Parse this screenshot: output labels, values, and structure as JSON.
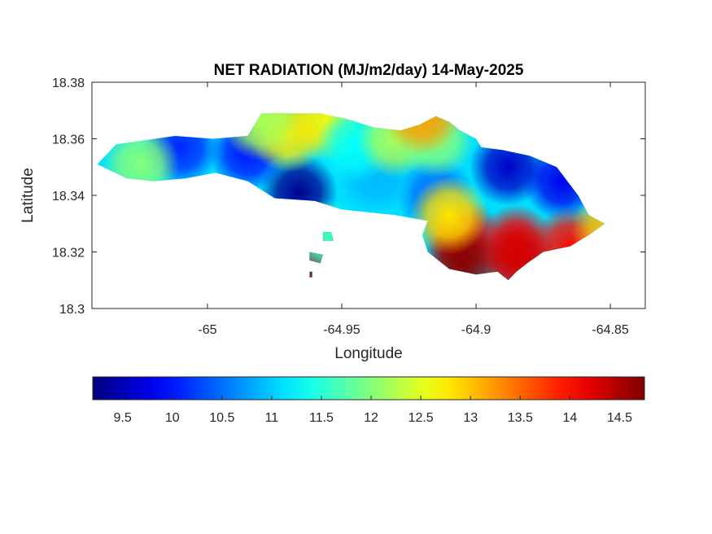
{
  "figure": {
    "title": "NET RADIATION (MJ/m2/day) 14-May-2025"
  },
  "map": {
    "xlabel": "Longitude",
    "ylabel": "Latitude",
    "xlim": [
      -65.043,
      -64.837
    ],
    "ylim": [
      18.3,
      18.38
    ],
    "xticks": [
      {
        "value": -65.0,
        "label": "-65"
      },
      {
        "value": -64.95,
        "label": "-64.95"
      },
      {
        "value": -64.9,
        "label": "-64.9"
      },
      {
        "value": -64.85,
        "label": "-64.85"
      }
    ],
    "yticks": [
      {
        "value": 18.3,
        "label": "18.3"
      },
      {
        "value": 18.32,
        "label": "18.32"
      },
      {
        "value": 18.34,
        "label": "18.34"
      },
      {
        "value": 18.36,
        "label": "18.36"
      },
      {
        "value": 18.38,
        "label": "18.38"
      }
    ],
    "colormap": "jet",
    "clim": [
      9.2,
      14.75
    ],
    "blobs": [
      {
        "x": -64.966,
        "y": 18.341,
        "v": 9.3
      },
      {
        "x": -64.985,
        "y": 18.355,
        "v": 10.0
      },
      {
        "x": -65.01,
        "y": 18.357,
        "v": 10.1
      },
      {
        "x": -64.888,
        "y": 18.35,
        "v": 9.6
      },
      {
        "x": -64.868,
        "y": 18.345,
        "v": 9.8
      },
      {
        "x": -64.915,
        "y": 18.34,
        "v": 10.5
      },
      {
        "x": -65.025,
        "y": 18.351,
        "v": 12.0
      },
      {
        "x": -64.955,
        "y": 18.366,
        "v": 12.7
      },
      {
        "x": -64.97,
        "y": 18.362,
        "v": 12.8
      },
      {
        "x": -64.98,
        "y": 18.366,
        "v": 12.2
      },
      {
        "x": -64.937,
        "y": 18.347,
        "v": 10.9
      },
      {
        "x": -64.945,
        "y": 18.358,
        "v": 11.3
      },
      {
        "x": -64.93,
        "y": 18.36,
        "v": 12.2
      },
      {
        "x": -64.915,
        "y": 18.36,
        "v": 12.0
      },
      {
        "x": -64.905,
        "y": 18.325,
        "v": 14.2
      },
      {
        "x": -64.885,
        "y": 18.323,
        "v": 14.1
      },
      {
        "x": -64.865,
        "y": 18.322,
        "v": 14.0
      },
      {
        "x": -64.905,
        "y": 18.316,
        "v": 14.7
      },
      {
        "x": -64.885,
        "y": 18.317,
        "v": 14.3
      },
      {
        "x": -64.85,
        "y": 18.328,
        "v": 13.0
      },
      {
        "x": -64.91,
        "y": 18.333,
        "v": 12.8
      },
      {
        "x": -64.958,
        "y": 18.318,
        "v": 14.7
      },
      {
        "x": -64.955,
        "y": 18.325,
        "v": 11.6
      },
      {
        "x": -64.92,
        "y": 18.368,
        "v": 13.2
      }
    ],
    "land_polygons": [
      [
        [
          -65.041,
          18.351
        ],
        [
          -65.034,
          18.358
        ],
        [
          -65.012,
          18.361
        ],
        [
          -64.998,
          18.36
        ],
        [
          -64.985,
          18.361
        ],
        [
          -64.98,
          18.369
        ],
        [
          -64.958,
          18.369
        ],
        [
          -64.948,
          18.367
        ],
        [
          -64.938,
          18.364
        ],
        [
          -64.928,
          18.363
        ],
        [
          -64.921,
          18.365
        ],
        [
          -64.915,
          18.368
        ],
        [
          -64.91,
          18.366
        ],
        [
          -64.906,
          18.363
        ],
        [
          -64.9,
          18.36
        ],
        [
          -64.898,
          18.357
        ],
        [
          -64.89,
          18.356
        ],
        [
          -64.88,
          18.354
        ],
        [
          -64.87,
          18.35
        ],
        [
          -64.862,
          18.34
        ],
        [
          -64.858,
          18.333
        ],
        [
          -64.852,
          18.33
        ],
        [
          -64.858,
          18.326
        ],
        [
          -64.865,
          18.322
        ],
        [
          -64.875,
          18.32
        ],
        [
          -64.881,
          18.316
        ],
        [
          -64.885,
          18.313
        ],
        [
          -64.888,
          18.31
        ],
        [
          -64.892,
          18.313
        ],
        [
          -64.9,
          18.312
        ],
        [
          -64.91,
          18.314
        ],
        [
          -64.918,
          18.32
        ],
        [
          -64.92,
          18.326
        ],
        [
          -64.918,
          18.331
        ],
        [
          -64.93,
          18.333
        ],
        [
          -64.95,
          18.335
        ],
        [
          -64.96,
          18.338
        ],
        [
          -64.975,
          18.339
        ],
        [
          -64.985,
          18.345
        ],
        [
          -64.997,
          18.348
        ],
        [
          -65.008,
          18.346
        ],
        [
          -65.02,
          18.345
        ],
        [
          -65.03,
          18.346
        ]
      ],
      [
        [
          -64.962,
          18.317
        ],
        [
          -64.958,
          18.316
        ],
        [
          -64.957,
          18.319
        ],
        [
          -64.962,
          18.32
        ]
      ],
      [
        [
          -64.957,
          18.327
        ],
        [
          -64.954,
          18.327
        ],
        [
          -64.953,
          18.324
        ],
        [
          -64.957,
          18.324
        ]
      ],
      [
        [
          -64.962,
          18.313
        ],
        [
          -64.961,
          18.313
        ],
        [
          -64.961,
          18.311
        ],
        [
          -64.962,
          18.311
        ]
      ]
    ],
    "colorbar": {
      "range": [
        9.2,
        14.75
      ],
      "ticks": [
        {
          "value": 9.5,
          "label": "9.5"
        },
        {
          "value": 10,
          "label": "10"
        },
        {
          "value": 10.5,
          "label": "10.5"
        },
        {
          "value": 11,
          "label": "11"
        },
        {
          "value": 11.5,
          "label": "11.5"
        },
        {
          "value": 12,
          "label": "12"
        },
        {
          "value": 12.5,
          "label": "12.5"
        },
        {
          "value": 13,
          "label": "13"
        },
        {
          "value": 13.5,
          "label": "13.5"
        },
        {
          "value": 14,
          "label": "14"
        },
        {
          "value": 14.5,
          "label": "14.5"
        }
      ]
    }
  }
}
